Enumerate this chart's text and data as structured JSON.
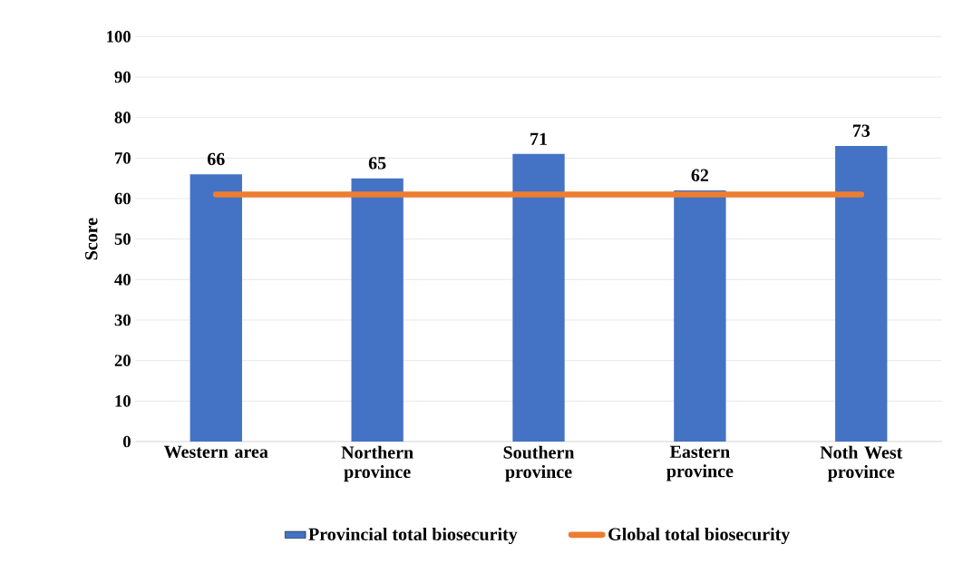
{
  "chart_data": {
    "type": "bar",
    "ylabel": "Score",
    "categories": [
      "Western area",
      "Northern province",
      "Southern province",
      "Eastern province",
      "Noth West province"
    ],
    "series": [
      {
        "name": "Provincial total biosecurity",
        "color": "#4472c4",
        "values": [
          66,
          65,
          71,
          62,
          73
        ],
        "value_labels": [
          "66",
          "65",
          "71",
          "62",
          "73"
        ]
      },
      {
        "name": "Global total biosecurity",
        "type": "line",
        "color": "#ed7d31",
        "values": [
          61,
          61,
          61,
          61,
          61
        ]
      }
    ],
    "ylim": [
      0,
      100
    ],
    "yticks": [
      0,
      10,
      20,
      30,
      40,
      50,
      60,
      70,
      80,
      90,
      100
    ],
    "grid": "y",
    "legend": "bottom"
  }
}
